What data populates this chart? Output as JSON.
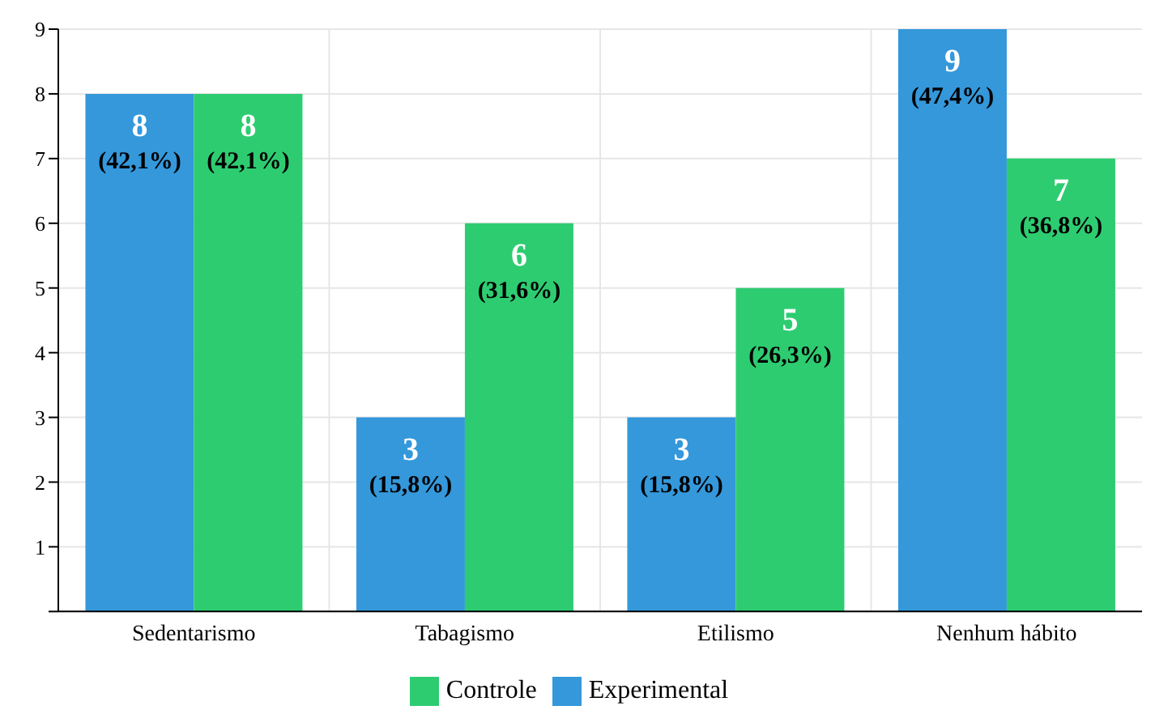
{
  "chart_data": {
    "type": "bar",
    "categories": [
      "Sedentarismo",
      "Tabagismo",
      "Etilismo",
      "Nenhum hábito"
    ],
    "series": [
      {
        "name": "Experimental",
        "color": "#3498db",
        "values": [
          8,
          3,
          3,
          9
        ],
        "value_labels": [
          "8 (42,1%)",
          "3 (15,8%)",
          "3 (15,8%)",
          "9 (47,4%)"
        ]
      },
      {
        "name": "Controle",
        "color": "#2ecc71",
        "values": [
          8,
          6,
          5,
          7
        ],
        "value_labels": [
          "8 (42,1%)",
          "6 (31,6%)",
          "5 (26,3%)",
          "7 (36,8%)"
        ]
      }
    ],
    "ylim": [
      0,
      9
    ],
    "yticks": [
      {
        "value": 0,
        "label": null
      },
      1,
      2,
      3,
      4,
      5,
      6,
      7,
      8,
      9
    ],
    "grid": true,
    "legend": "bottom"
  }
}
